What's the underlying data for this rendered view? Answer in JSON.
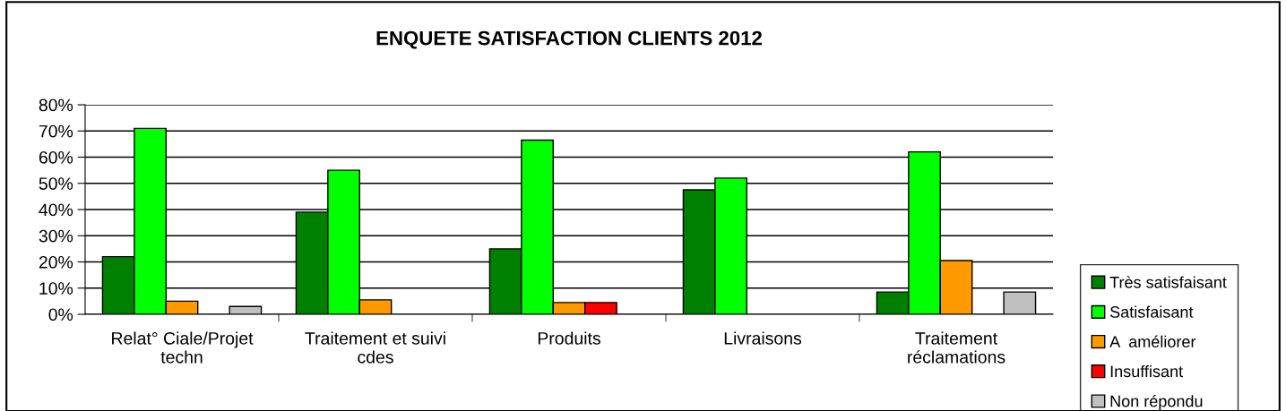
{
  "chart_data": {
    "type": "bar",
    "title": "ENQUETE SATISFACTION CLIENTS 2012",
    "categories": [
      "Relat° Ciale/Projet techn",
      "Traitement et suivi cdes",
      "Produits",
      "Livraisons",
      "Traitement réclamations"
    ],
    "series": [
      {
        "name": "Très satisfaisant",
        "color": "#008000",
        "values": [
          22,
          39,
          25,
          47.5,
          8.5
        ]
      },
      {
        "name": "Satisfaisant",
        "color": "#00ff00",
        "values": [
          71,
          55,
          66.5,
          52,
          62
        ]
      },
      {
        "name": "A  améliorer",
        "color": "#ff9900",
        "values": [
          5,
          5.5,
          4.5,
          null,
          20.5
        ]
      },
      {
        "name": "Insuffisant",
        "color": "#ff0000",
        "values": [
          null,
          null,
          4.5,
          null,
          null
        ]
      },
      {
        "name": "Non répondu",
        "color": "#c0c0c0",
        "values": [
          3,
          null,
          null,
          null,
          8.5
        ]
      }
    ],
    "ylim": [
      0,
      80
    ],
    "yticks": [
      {
        "value": 0,
        "label": "0%"
      },
      {
        "value": 10,
        "label": "10%"
      },
      {
        "value": 20,
        "label": "20%"
      },
      {
        "value": 30,
        "label": "30%"
      },
      {
        "value": 40,
        "label": "40%"
      },
      {
        "value": 50,
        "label": "50%"
      },
      {
        "value": 60,
        "label": "60%"
      },
      {
        "value": 70,
        "label": "70%"
      },
      {
        "value": 80,
        "label": "80%"
      }
    ],
    "grid": "y",
    "legend": "bottom right"
  }
}
